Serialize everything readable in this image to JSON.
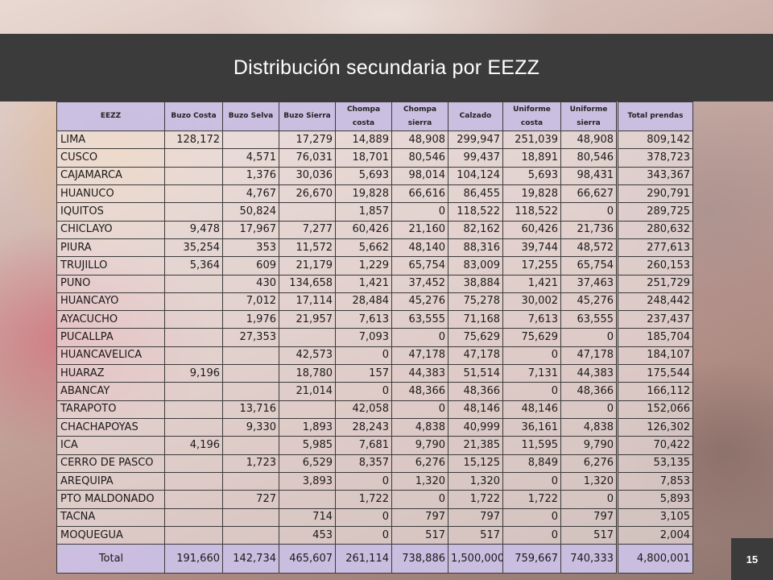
{
  "title": "Distribución secundaria por EEZZ",
  "page_number": "15",
  "table": {
    "headers": [
      "EEZZ",
      "Buzo Costa",
      "Buzo Selva",
      "Buzo Sierra",
      "Chompa costa",
      "Chompa sierra",
      "Calzado",
      "Uniforme costa",
      "Uniforme sierra",
      "Total prendas"
    ],
    "rows": [
      [
        "LIMA",
        "128,172",
        "",
        "17,279",
        "14,889",
        "48,908",
        "299,947",
        "251,039",
        "48,908",
        "809,142"
      ],
      [
        "CUSCO",
        "",
        "4,571",
        "76,031",
        "18,701",
        "80,546",
        "99,437",
        "18,891",
        "80,546",
        "378,723"
      ],
      [
        "CAJAMARCA",
        "",
        "1,376",
        "30,036",
        "5,693",
        "98,014",
        "104,124",
        "5,693",
        "98,431",
        "343,367"
      ],
      [
        "HUANUCO",
        "",
        "4,767",
        "26,670",
        "19,828",
        "66,616",
        "86,455",
        "19,828",
        "66,627",
        "290,791"
      ],
      [
        "IQUITOS",
        "",
        "50,824",
        "",
        "1,857",
        "0",
        "118,522",
        "118,522",
        "0",
        "289,725"
      ],
      [
        "CHICLAYO",
        "9,478",
        "17,967",
        "7,277",
        "60,426",
        "21,160",
        "82,162",
        "60,426",
        "21,736",
        "280,632"
      ],
      [
        "PIURA",
        "35,254",
        "353",
        "11,572",
        "5,662",
        "48,140",
        "88,316",
        "39,744",
        "48,572",
        "277,613"
      ],
      [
        "TRUJILLO",
        "5,364",
        "609",
        "21,179",
        "1,229",
        "65,754",
        "83,009",
        "17,255",
        "65,754",
        "260,153"
      ],
      [
        "PUNO",
        "",
        "430",
        "134,658",
        "1,421",
        "37,452",
        "38,884",
        "1,421",
        "37,463",
        "251,729"
      ],
      [
        "HUANCAYO",
        "",
        "7,012",
        "17,114",
        "28,484",
        "45,276",
        "75,278",
        "30,002",
        "45,276",
        "248,442"
      ],
      [
        "AYACUCHO",
        "",
        "1,976",
        "21,957",
        "7,613",
        "63,555",
        "71,168",
        "7,613",
        "63,555",
        "237,437"
      ],
      [
        "PUCALLPA",
        "",
        "27,353",
        "",
        "7,093",
        "0",
        "75,629",
        "75,629",
        "0",
        "185,704"
      ],
      [
        "HUANCAVELICA",
        "",
        "",
        "42,573",
        "0",
        "47,178",
        "47,178",
        "0",
        "47,178",
        "184,107"
      ],
      [
        "HUARAZ",
        "9,196",
        "",
        "18,780",
        "157",
        "44,383",
        "51,514",
        "7,131",
        "44,383",
        "175,544"
      ],
      [
        "ABANCAY",
        "",
        "",
        "21,014",
        "0",
        "48,366",
        "48,366",
        "0",
        "48,366",
        "166,112"
      ],
      [
        "TARAPOTO",
        "",
        "13,716",
        "",
        "42,058",
        "0",
        "48,146",
        "48,146",
        "0",
        "152,066"
      ],
      [
        "CHACHAPOYAS",
        "",
        "9,330",
        "1,893",
        "28,243",
        "4,838",
        "40,999",
        "36,161",
        "4,838",
        "126,302"
      ],
      [
        "ICA",
        "4,196",
        "",
        "5,985",
        "7,681",
        "9,790",
        "21,385",
        "11,595",
        "9,790",
        "70,422"
      ],
      [
        "CERRO DE PASCO",
        "",
        "1,723",
        "6,529",
        "8,357",
        "6,276",
        "15,125",
        "8,849",
        "6,276",
        "53,135"
      ],
      [
        "AREQUIPA",
        "",
        "",
        "3,893",
        "0",
        "1,320",
        "1,320",
        "0",
        "1,320",
        "7,853"
      ],
      [
        "PTO MALDONADO",
        "",
        "727",
        "",
        "1,722",
        "0",
        "1,722",
        "1,722",
        "0",
        "5,893"
      ],
      [
        "TACNA",
        "",
        "",
        "714",
        "0",
        "797",
        "797",
        "0",
        "797",
        "3,105"
      ],
      [
        "MOQUEGUA",
        "",
        "",
        "453",
        "0",
        "517",
        "517",
        "0",
        "517",
        "2,004"
      ]
    ],
    "total": [
      "Total",
      "191,660",
      "142,734",
      "465,607",
      "261,114",
      "738,886",
      "1,500,000",
      "759,667",
      "740,333",
      "4,800,001"
    ]
  }
}
